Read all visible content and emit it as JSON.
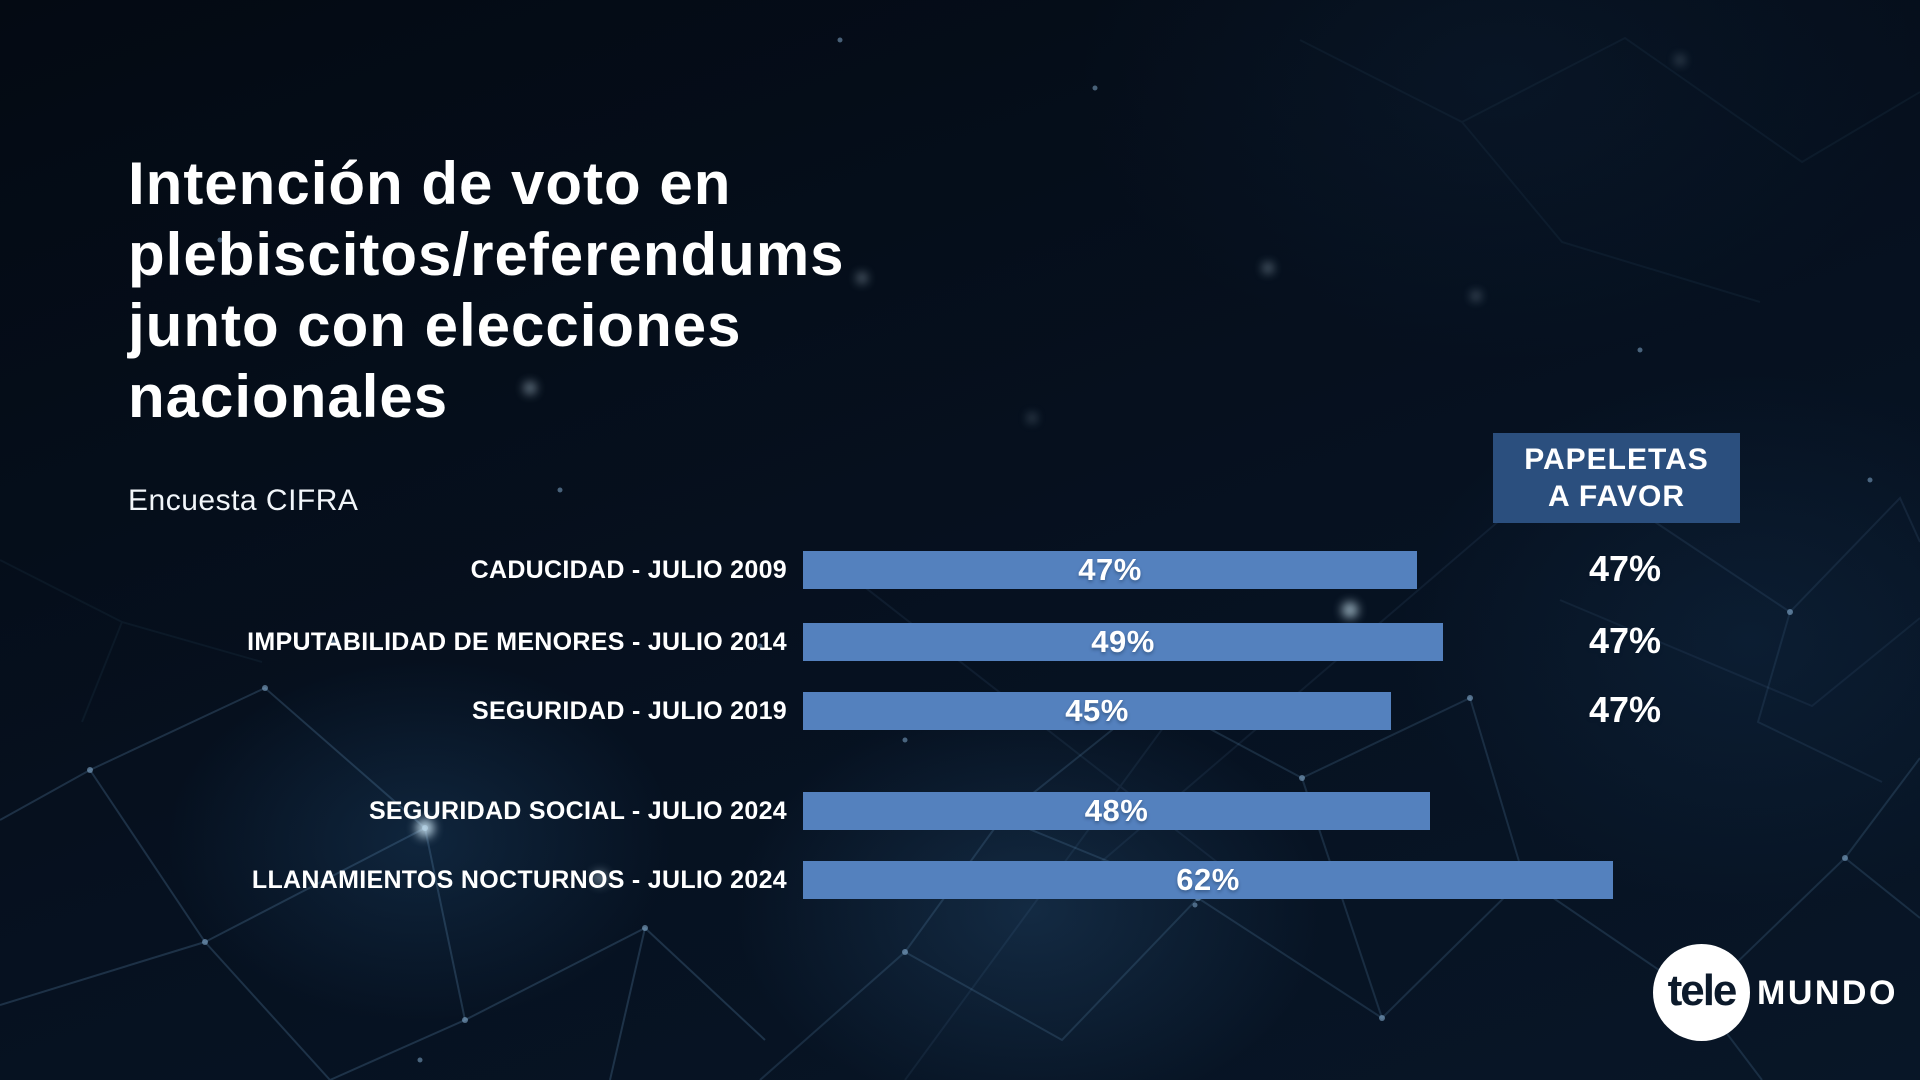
{
  "title": {
    "lines": [
      "Intención de voto en",
      "plebiscitos/referendums",
      "junto con elecciones",
      "nacionales"
    ]
  },
  "subtitle": "Encuesta CIFRA",
  "favor_header": {
    "line1": "PAPELETAS",
    "line2": "A FAVOR"
  },
  "chart_data": {
    "type": "bar",
    "orientation": "horizontal",
    "title": "Intención de voto en plebiscitos/referendums junto con elecciones nacionales",
    "source": "Encuesta CIFRA",
    "unit": "%",
    "xlim": [
      0,
      100
    ],
    "categories": [
      "CADUCIDAD - JULIO 2009",
      "IMPUTABILIDAD DE MENORES - JULIO 2014",
      "SEGURIDAD - JULIO 2019",
      "SEGURIDAD SOCIAL - JULIO 2024",
      "LLANAMIENTOS NOCTURNOS - JULIO 2024"
    ],
    "values": [
      47,
      49,
      45,
      48,
      62
    ],
    "value_labels": [
      "47%",
      "49%",
      "45%",
      "48%",
      "62%"
    ],
    "papeletas_a_favor": [
      "47%",
      "47%",
      "47%",
      "",
      ""
    ],
    "bar_color": "#5481be",
    "favor_header_box_color": "#2b4f7e",
    "text_color": "#ffffff",
    "background_color": "#050e1a"
  },
  "logo": {
    "circle_text": "tele",
    "wordmark": "MUNDO"
  }
}
